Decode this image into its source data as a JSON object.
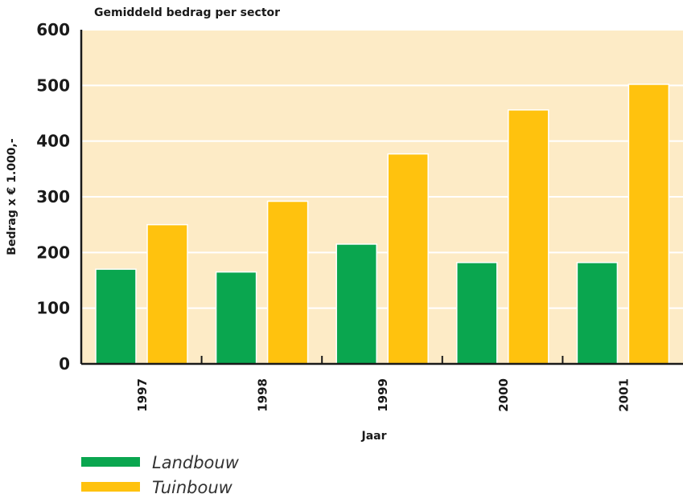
{
  "chart_data": {
    "type": "bar",
    "title": "Gemiddeld bedrag per sector",
    "xlabel": "Jaar",
    "ylabel": "Bedrag x € 1.000,-",
    "categories": [
      "1997",
      "1998",
      "1999",
      "2000",
      "2001"
    ],
    "series": [
      {
        "name": "Landbouw",
        "color": "#0aa64f",
        "values": [
          170,
          165,
          215,
          182,
          182
        ]
      },
      {
        "name": "Tuinbouw",
        "color": "#ffc20e",
        "values": [
          250,
          292,
          377,
          456,
          502
        ]
      }
    ],
    "yticks": [
      "0",
      "100",
      "200",
      "300",
      "400",
      "500",
      "600"
    ],
    "ylim": [
      0,
      600
    ],
    "grid": true,
    "legend_position": "bottom-left",
    "colors": {
      "plot_background": "#fdebc6",
      "gridline": "#ffffff",
      "axis": "#1a1a1a"
    }
  }
}
